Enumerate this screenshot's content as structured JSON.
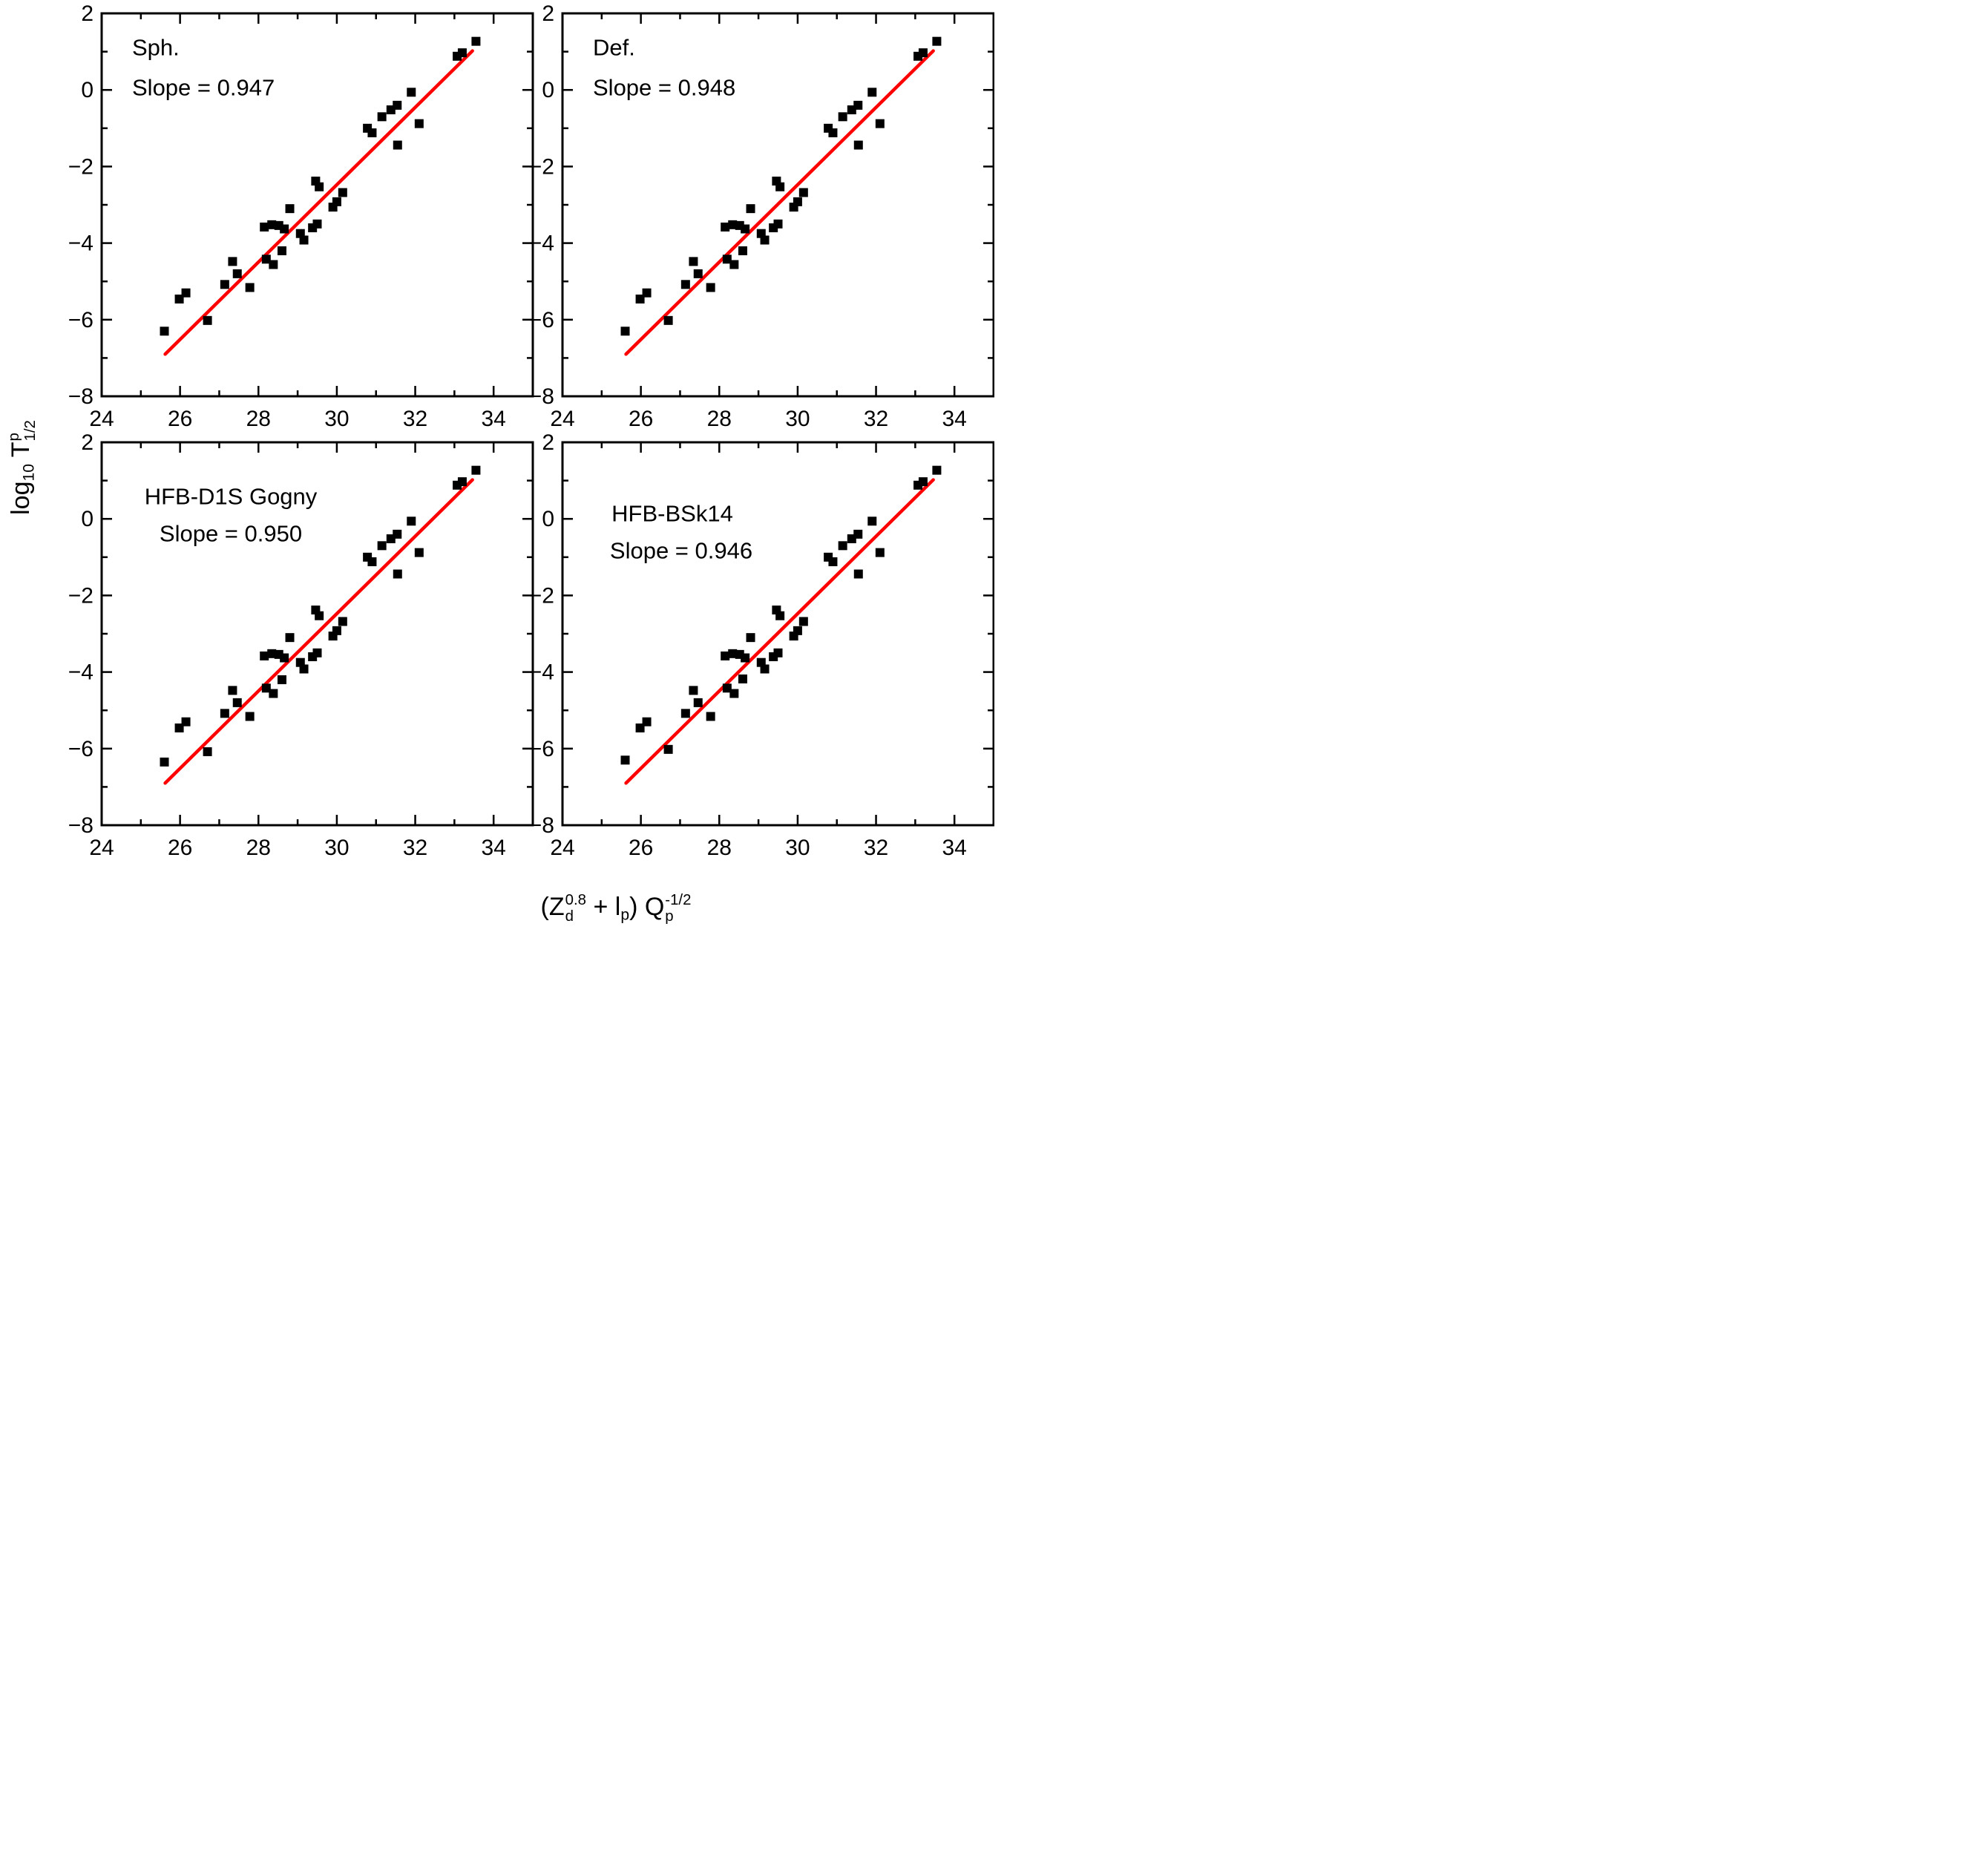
{
  "colors": {
    "background": "#ffffff",
    "frame": "#000000",
    "marker": "#000000",
    "fit_line": "#ff0000",
    "text": "#000000"
  },
  "axes": {
    "xlabel": {
      "open": "(",
      "z": "Z",
      "z_sup": "0.8",
      "z_sub": "d",
      "plus": " + ",
      "l": "l",
      "l_sub": "p",
      "close": ") ",
      "q": "Q",
      "q_sup": "-1/2",
      "q_sub": "p"
    },
    "ylabel": {
      "log": "log",
      "log_sub": "10",
      "t": " T",
      "t_sup": "p",
      "t_sub": "1/2"
    }
  },
  "chart_data": [
    {
      "id": "sph",
      "type": "scatter",
      "title": "Sph.",
      "slope_label": "Slope = 0.947",
      "slope": 0.947,
      "xlim": [
        24,
        35
      ],
      "ylim": [
        -8,
        2
      ],
      "x_ticks": [
        24,
        26,
        28,
        30,
        32,
        34
      ],
      "y_ticks": [
        2,
        0,
        -2,
        -4,
        -6,
        -8
      ],
      "x_minor_ticks": [
        25,
        27,
        29,
        31,
        33
      ],
      "y_minor_ticks": [
        1,
        -1,
        -3,
        -5,
        -7
      ],
      "grid": false,
      "legend": "none",
      "fit_line": {
        "x1": 25.62,
        "y1": -6.9,
        "x2": 33.46,
        "y2": 1.02
      },
      "points": [
        [
          25.6,
          -6.3
        ],
        [
          25.98,
          -5.46
        ],
        [
          26.15,
          -5.3
        ],
        [
          26.7,
          -6.02
        ],
        [
          27.14,
          -5.08
        ],
        [
          27.34,
          -4.48
        ],
        [
          27.46,
          -4.8
        ],
        [
          27.78,
          -5.16
        ],
        [
          28.2,
          -4.42
        ],
        [
          28.38,
          -4.56
        ],
        [
          28.6,
          -4.2
        ],
        [
          28.15,
          -3.58
        ],
        [
          28.34,
          -3.52
        ],
        [
          28.52,
          -3.54
        ],
        [
          28.66,
          -3.63
        ],
        [
          28.8,
          -3.1
        ],
        [
          29.07,
          -3.75
        ],
        [
          29.16,
          -3.92
        ],
        [
          29.38,
          -3.6
        ],
        [
          29.5,
          -3.5
        ],
        [
          29.46,
          -2.38
        ],
        [
          29.55,
          -2.53
        ],
        [
          29.9,
          -3.06
        ],
        [
          30.0,
          -2.92
        ],
        [
          30.15,
          -2.68
        ],
        [
          30.78,
          -1.0
        ],
        [
          30.9,
          -1.12
        ],
        [
          31.15,
          -0.7
        ],
        [
          31.38,
          -0.52
        ],
        [
          31.54,
          -0.4
        ],
        [
          31.55,
          -1.44
        ],
        [
          31.9,
          -0.06
        ],
        [
          32.1,
          -0.88
        ],
        [
          33.07,
          0.88
        ],
        [
          33.2,
          0.97
        ],
        [
          33.55,
          1.27
        ]
      ]
    },
    {
      "id": "def",
      "type": "scatter",
      "title": "Def.",
      "slope_label": "Slope = 0.948",
      "slope": 0.948,
      "xlim": [
        24,
        35
      ],
      "ylim": [
        -8,
        2
      ],
      "x_ticks": [
        24,
        26,
        28,
        30,
        32,
        34
      ],
      "y_ticks": [
        2,
        0,
        -2,
        -4,
        -6,
        -8
      ],
      "x_minor_ticks": [
        25,
        27,
        29,
        31,
        33
      ],
      "y_minor_ticks": [
        1,
        -1,
        -3,
        -5,
        -7
      ],
      "grid": false,
      "legend": "none",
      "fit_line": {
        "x1": 25.62,
        "y1": -6.9,
        "x2": 33.46,
        "y2": 1.02
      },
      "points": [
        [
          25.6,
          -6.3
        ],
        [
          25.98,
          -5.46
        ],
        [
          26.15,
          -5.3
        ],
        [
          26.7,
          -6.02
        ],
        [
          27.14,
          -5.08
        ],
        [
          27.34,
          -4.48
        ],
        [
          27.46,
          -4.8
        ],
        [
          27.78,
          -5.16
        ],
        [
          28.2,
          -4.42
        ],
        [
          28.38,
          -4.56
        ],
        [
          28.6,
          -4.2
        ],
        [
          28.15,
          -3.58
        ],
        [
          28.34,
          -3.52
        ],
        [
          28.52,
          -3.54
        ],
        [
          28.66,
          -3.63
        ],
        [
          28.8,
          -3.1
        ],
        [
          29.07,
          -3.75
        ],
        [
          29.16,
          -3.92
        ],
        [
          29.38,
          -3.6
        ],
        [
          29.5,
          -3.5
        ],
        [
          29.46,
          -2.38
        ],
        [
          29.55,
          -2.53
        ],
        [
          29.9,
          -3.06
        ],
        [
          30.0,
          -2.92
        ],
        [
          30.15,
          -2.68
        ],
        [
          30.78,
          -1.0
        ],
        [
          30.9,
          -1.12
        ],
        [
          31.15,
          -0.7
        ],
        [
          31.38,
          -0.52
        ],
        [
          31.54,
          -0.4
        ],
        [
          31.55,
          -1.44
        ],
        [
          31.9,
          -0.06
        ],
        [
          32.1,
          -0.88
        ],
        [
          33.07,
          0.88
        ],
        [
          33.2,
          0.97
        ],
        [
          33.55,
          1.27
        ]
      ]
    },
    {
      "id": "gogny",
      "type": "scatter",
      "title": "HFB-D1S Gogny",
      "slope_label": "Slope = 0.950",
      "slope": 0.95,
      "xlim": [
        24,
        35
      ],
      "ylim": [
        -8,
        2
      ],
      "x_ticks": [
        24,
        26,
        28,
        30,
        32,
        34
      ],
      "y_ticks": [
        2,
        0,
        -2,
        -4,
        -6,
        -8
      ],
      "x_minor_ticks": [
        25,
        27,
        29,
        31,
        33
      ],
      "y_minor_ticks": [
        1,
        -1,
        -3,
        -5,
        -7
      ],
      "grid": false,
      "legend": "none",
      "fit_line": {
        "x1": 25.62,
        "y1": -6.9,
        "x2": 33.46,
        "y2": 1.02
      },
      "points": [
        [
          25.6,
          -6.35
        ],
        [
          25.98,
          -5.46
        ],
        [
          26.15,
          -5.3
        ],
        [
          26.7,
          -6.08
        ],
        [
          27.14,
          -5.08
        ],
        [
          27.34,
          -4.48
        ],
        [
          27.46,
          -4.8
        ],
        [
          27.78,
          -5.16
        ],
        [
          28.2,
          -4.42
        ],
        [
          28.38,
          -4.56
        ],
        [
          28.6,
          -4.2
        ],
        [
          28.15,
          -3.58
        ],
        [
          28.34,
          -3.52
        ],
        [
          28.52,
          -3.54
        ],
        [
          28.66,
          -3.63
        ],
        [
          28.8,
          -3.1
        ],
        [
          29.07,
          -3.75
        ],
        [
          29.16,
          -3.92
        ],
        [
          29.38,
          -3.6
        ],
        [
          29.5,
          -3.5
        ],
        [
          29.46,
          -2.38
        ],
        [
          29.55,
          -2.53
        ],
        [
          29.9,
          -3.06
        ],
        [
          30.0,
          -2.92
        ],
        [
          30.15,
          -2.68
        ],
        [
          30.78,
          -1.0
        ],
        [
          30.9,
          -1.12
        ],
        [
          31.15,
          -0.7
        ],
        [
          31.38,
          -0.52
        ],
        [
          31.54,
          -0.4
        ],
        [
          31.55,
          -1.44
        ],
        [
          31.9,
          -0.06
        ],
        [
          32.1,
          -0.88
        ],
        [
          33.07,
          0.88
        ],
        [
          33.2,
          0.97
        ],
        [
          33.55,
          1.27
        ]
      ]
    },
    {
      "id": "bsk14",
      "type": "scatter",
      "title": "HFB-BSk14",
      "slope_label": "Slope = 0.946",
      "slope": 0.946,
      "xlim": [
        24,
        35
      ],
      "ylim": [
        -8,
        2
      ],
      "x_ticks": [
        24,
        26,
        28,
        30,
        32,
        34
      ],
      "y_ticks": [
        2,
        0,
        -2,
        -4,
        -6,
        -8
      ],
      "x_minor_ticks": [
        25,
        27,
        29,
        31,
        33
      ],
      "y_minor_ticks": [
        1,
        -1,
        -3,
        -5,
        -7
      ],
      "grid": false,
      "legend": "none",
      "fit_line": {
        "x1": 25.62,
        "y1": -6.9,
        "x2": 33.46,
        "y2": 1.02
      },
      "points": [
        [
          25.6,
          -6.3
        ],
        [
          25.98,
          -5.46
        ],
        [
          26.15,
          -5.3
        ],
        [
          26.7,
          -6.02
        ],
        [
          27.14,
          -5.08
        ],
        [
          27.34,
          -4.48
        ],
        [
          27.46,
          -4.8
        ],
        [
          27.78,
          -5.16
        ],
        [
          28.2,
          -4.42
        ],
        [
          28.38,
          -4.56
        ],
        [
          28.6,
          -4.18
        ],
        [
          28.15,
          -3.58
        ],
        [
          28.34,
          -3.52
        ],
        [
          28.52,
          -3.54
        ],
        [
          28.66,
          -3.63
        ],
        [
          28.8,
          -3.1
        ],
        [
          29.07,
          -3.75
        ],
        [
          29.16,
          -3.92
        ],
        [
          29.38,
          -3.6
        ],
        [
          29.5,
          -3.5
        ],
        [
          29.46,
          -2.38
        ],
        [
          29.55,
          -2.53
        ],
        [
          29.9,
          -3.06
        ],
        [
          30.0,
          -2.92
        ],
        [
          30.15,
          -2.68
        ],
        [
          30.78,
          -1.0
        ],
        [
          30.9,
          -1.12
        ],
        [
          31.15,
          -0.7
        ],
        [
          31.38,
          -0.52
        ],
        [
          31.54,
          -0.4
        ],
        [
          31.55,
          -1.44
        ],
        [
          31.9,
          -0.06
        ],
        [
          32.1,
          -0.88
        ],
        [
          33.07,
          0.88
        ],
        [
          33.2,
          0.97
        ],
        [
          33.55,
          1.27
        ]
      ]
    }
  ]
}
